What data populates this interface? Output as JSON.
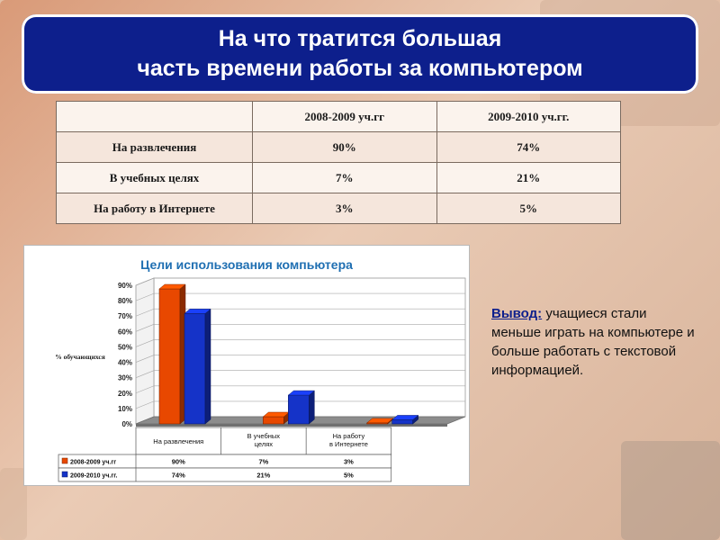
{
  "title": {
    "line1": "На что тратится большая",
    "line2": "часть времени работы за  компьютером"
  },
  "table": {
    "headers": [
      "",
      "2008-2009 уч.гг",
      "2009-2010 уч.гг."
    ],
    "rows": [
      [
        "На развлечения",
        "90%",
        "74%"
      ],
      [
        "В учебных целях",
        "7%",
        "21%"
      ],
      [
        "На работу в Интернете",
        "3%",
        "5%"
      ]
    ]
  },
  "chart_data": {
    "type": "bar",
    "title": "Цели использования компьютера",
    "ylabel": "% обучающихся",
    "xlabel": "",
    "ylim": [
      0,
      90
    ],
    "yticks": [
      "0%",
      "10%",
      "20%",
      "30%",
      "40%",
      "50%",
      "60%",
      "70%",
      "80%",
      "90%"
    ],
    "categories": [
      "На развлечения",
      "В учебных целях",
      "На работу в Интернете"
    ],
    "series": [
      {
        "name": "2008-2009 уч.гг",
        "values": [
          90,
          7,
          3
        ],
        "labels": [
          "90%",
          "7%",
          "3%"
        ],
        "color": "#e84800"
      },
      {
        "name": "2009-2010 уч.гг.",
        "values": [
          74,
          21,
          5
        ],
        "labels": [
          "74%",
          "21%",
          "5%"
        ],
        "color": "#1533c8"
      }
    ],
    "grid": true,
    "legend": "data-table-below"
  },
  "conclusion": {
    "lead": "Вывод:",
    "text": "учащиеся стали меньше играть на компьютере и больше работать с текстовой информацией."
  },
  "colors": {
    "title_bg": "#0d1f8c",
    "chart_title": "#1f6fb2",
    "series1": "#e84800",
    "series2": "#1533c8"
  }
}
